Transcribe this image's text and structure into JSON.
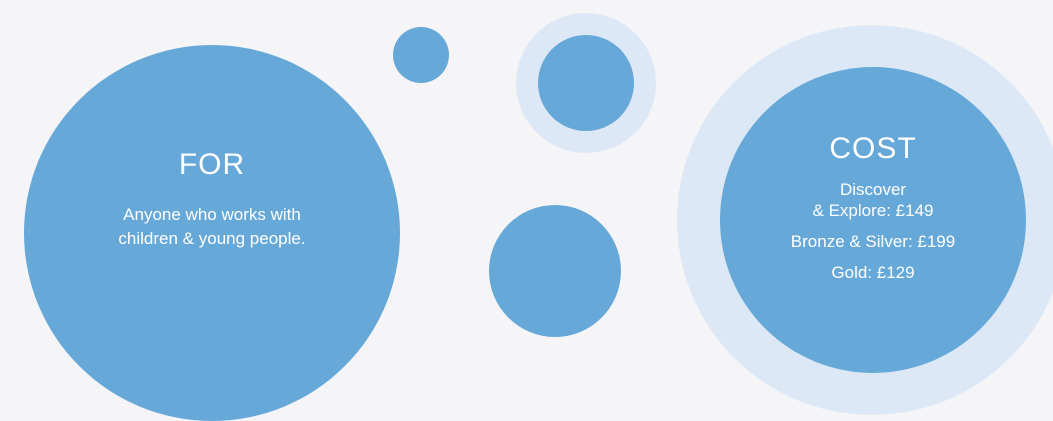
{
  "for_section": {
    "title": "FOR",
    "body": "Anyone who works with children & young people."
  },
  "cost_section": {
    "title": "COST",
    "lines": [
      "Discover",
      "& Explore: £149",
      "Bronze & Silver: £199",
      "Gold: £129"
    ]
  },
  "colors": {
    "background": "#f5f5f8",
    "circle": "#66a8d8",
    "ring": "#dde8f6",
    "text": "#ffffff"
  }
}
